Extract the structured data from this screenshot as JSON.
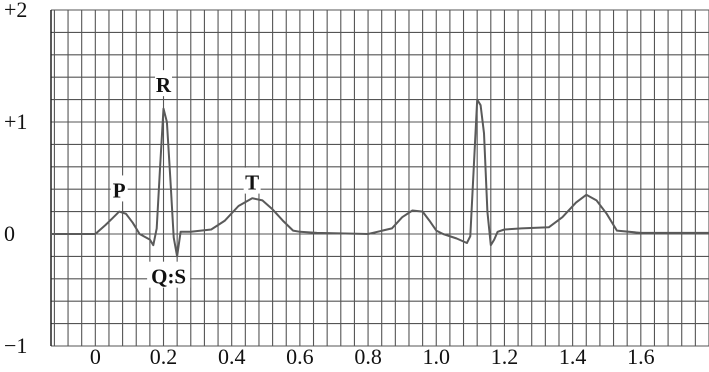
{
  "chart_data": {
    "type": "line",
    "title": "",
    "xlabel": "",
    "ylabel": "",
    "xlim": [
      -0.13,
      1.8
    ],
    "ylim": [
      -1,
      2
    ],
    "grid": true,
    "x_ticks": [
      "0",
      "0.2",
      "0.4",
      "0.6",
      "0.8",
      "1.0",
      "1.2",
      "1.4",
      "1.6"
    ],
    "y_ticks": [
      "+2",
      "+1",
      "0",
      "−1"
    ],
    "series": [
      {
        "name": "",
        "x": [
          -0.13,
          0.0,
          0.03,
          0.05,
          0.07,
          0.09,
          0.11,
          0.13,
          0.16,
          0.17,
          0.18,
          0.19,
          0.2,
          0.21,
          0.22,
          0.23,
          0.24,
          0.25,
          0.26,
          0.28,
          0.34,
          0.38,
          0.42,
          0.46,
          0.49,
          0.52,
          0.55,
          0.58,
          0.6,
          0.65,
          0.8,
          0.87,
          0.9,
          0.93,
          0.96,
          0.98,
          1.0,
          1.02,
          1.06,
          1.09,
          1.1,
          1.11,
          1.12,
          1.13,
          1.14,
          1.15,
          1.16,
          1.17,
          1.18,
          1.2,
          1.25,
          1.33,
          1.37,
          1.41,
          1.44,
          1.47,
          1.5,
          1.53,
          1.6,
          1.8
        ],
        "values": [
          0.0,
          0.0,
          0.08,
          0.14,
          0.2,
          0.18,
          0.1,
          0.0,
          -0.05,
          -0.1,
          0.05,
          0.6,
          1.12,
          1.0,
          0.5,
          -0.03,
          -0.2,
          0.02,
          0.02,
          0.02,
          0.04,
          0.12,
          0.25,
          0.32,
          0.3,
          0.22,
          0.12,
          0.03,
          0.02,
          0.01,
          0.0,
          0.05,
          0.15,
          0.21,
          0.2,
          0.12,
          0.03,
          0.0,
          -0.04,
          -0.08,
          -0.02,
          0.6,
          1.2,
          1.15,
          0.9,
          0.2,
          -0.1,
          -0.05,
          0.02,
          0.04,
          0.05,
          0.06,
          0.15,
          0.28,
          0.35,
          0.3,
          0.18,
          0.03,
          0.01,
          0.01
        ],
        "color": "#5a5a5a"
      }
    ],
    "annotations": [
      {
        "text": "P",
        "x": 0.07,
        "y": 0.38
      },
      {
        "text": "R",
        "x": 0.2,
        "y": 1.32
      },
      {
        "text": "T",
        "x": 0.46,
        "y": 0.45
      },
      {
        "text": "Q:S",
        "x": 0.215,
        "y": -0.39
      }
    ]
  }
}
